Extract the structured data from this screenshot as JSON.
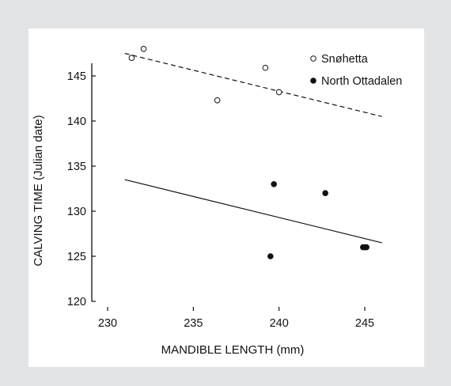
{
  "chart_data": {
    "type": "scatter",
    "xlabel": "MANDIBLE LENGTH (mm)",
    "ylabel": "CALVING TIME (Julian date)",
    "xlim": [
      230,
      247
    ],
    "ylim": [
      120,
      149
    ],
    "xticks": [
      230,
      235,
      240,
      245
    ],
    "yticks": [
      120,
      125,
      130,
      135,
      140,
      145
    ],
    "grid": false,
    "legend_position": "top-right",
    "series": [
      {
        "name": "Snøhetta",
        "marker": "open-circle",
        "points": [
          [
            231.4,
            147
          ],
          [
            232.1,
            148
          ],
          [
            236.4,
            142.3
          ],
          [
            239.2,
            145.9
          ],
          [
            240,
            143.2
          ]
        ],
        "trendline": {
          "style": "dashed",
          "from": [
            231,
            147.5
          ],
          "to": [
            246,
            140.5
          ]
        }
      },
      {
        "name": "North Ottadalen",
        "marker": "filled-circle",
        "points": [
          [
            239.5,
            125
          ],
          [
            239.7,
            133
          ],
          [
            242.7,
            132
          ],
          [
            244.9,
            126
          ],
          [
            245,
            126
          ],
          [
            245.1,
            126
          ]
        ],
        "trendline": {
          "style": "solid",
          "from": [
            231,
            133.5
          ],
          "to": [
            246,
            126.5
          ]
        }
      }
    ],
    "colors": {
      "marker": "#111111",
      "line": "#111111",
      "frame_bg": "#e3e4e5",
      "plot_bg": "#ffffff"
    }
  }
}
